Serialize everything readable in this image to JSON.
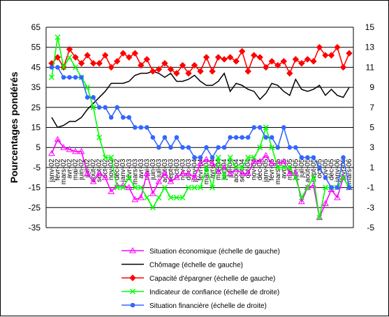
{
  "chart_data": {
    "type": "line",
    "ylabel": "Pourcentages pondérés",
    "y_left": {
      "min": -35,
      "max": 65,
      "ticks": [
        -35,
        -25,
        -15,
        -5,
        5,
        15,
        25,
        35,
        45,
        55,
        65
      ]
    },
    "y_right": {
      "min": -5,
      "max": 15,
      "ticks": [
        -5,
        -3,
        -1,
        1,
        3,
        5,
        7,
        9,
        11,
        13,
        15
      ]
    },
    "categories": [
      "janv-02",
      "févr-02",
      "mars-02",
      "avr-02",
      "mai-02",
      "juin-02",
      "juil-02",
      "août-02",
      "sept-02",
      "oct-02",
      "nov-02",
      "déc-02",
      "janv-03",
      "févr-03",
      "mars-03",
      "avr-03",
      "mai-03",
      "juin-03",
      "juil-03",
      "août-03",
      "sept-03",
      "oct-03",
      "nov-03",
      "déc-03",
      "janv-04",
      "févr-04",
      "mars-04",
      "avr-04",
      "mai-04",
      "juin-04",
      "juil-04",
      "août-04",
      "sept-04",
      "oct-04",
      "nov-04",
      "déc-04",
      "janv-05",
      "févr-05",
      "mars-05",
      "avr-05",
      "mai-05",
      "juin-05",
      "juil-05",
      "août-05",
      "sept-05",
      "oct-05",
      "nov-05",
      "déc-05",
      "janv-06",
      "févr-06",
      "mars-06"
    ],
    "x_labels": [
      "janv-02",
      "févr-02",
      "mars-02",
      "avr-02",
      "mai-02",
      "juin-02",
      "juil-02",
      "août-02",
      "sept-02",
      "oct-02",
      "nov-02",
      "déc-02",
      "janv-03",
      "févr-03",
      "mars-03",
      "avr-03",
      "mai-03",
      "juin-03",
      "juil-03",
      "août-03",
      "sept-03",
      "oct-03",
      "nov-03",
      "déc-03",
      "janv-04",
      "févr-04",
      "mars-04",
      "avr-04",
      "mai-04",
      "juin-04",
      "juil-04",
      "août-04",
      "sept-04",
      "oct-04",
      "nov-04",
      "déc-04",
      "janv-05",
      "févr-05",
      "mars-05",
      "avr-05",
      "mai-05",
      "juin-05",
      "juil-05",
      "août-05",
      "sept-05",
      "oct-05",
      "nov-05",
      "déc-05",
      "janv-06",
      "févr-06",
      "mars-06"
    ],
    "series": [
      {
        "name": "Situation économique (échelle de gauche)",
        "axis": "left",
        "color": "#ff00ff",
        "marker": "triangle",
        "values": [
          2,
          9,
          5,
          4,
          3,
          3,
          -8,
          -12,
          -8,
          -10,
          -17,
          -14,
          -14,
          -15,
          -21,
          -20,
          -8,
          -18,
          -12,
          -8,
          -12,
          -10,
          -8,
          -8,
          -10,
          -3,
          -1,
          -3,
          -7,
          -5,
          -8,
          -6,
          -8,
          -8,
          -2,
          -2,
          1,
          -3,
          -3,
          -2,
          -8,
          -8,
          -22,
          -15,
          -14,
          -30,
          -23,
          -16,
          -20,
          -10,
          -15
        ]
      },
      {
        "name": "Chômage (échelle de gauche)",
        "axis": "left",
        "color": "#000000",
        "marker": "none",
        "values": [
          20,
          15,
          16,
          18,
          18,
          20,
          24,
          27,
          30,
          33,
          37,
          37,
          37,
          38,
          41,
          42,
          42,
          43,
          42,
          40,
          42,
          38,
          38,
          39,
          41,
          38,
          36,
          36,
          38,
          42,
          33,
          37,
          36,
          34,
          33,
          29,
          32,
          37,
          36,
          33,
          31,
          39,
          34,
          33,
          34,
          36,
          31,
          34,
          31,
          30,
          35
        ]
      },
      {
        "name": "Capacité d'épargner (échelle de gauche)",
        "axis": "left",
        "color": "#ff0000",
        "marker": "diamond",
        "values": [
          47,
          50,
          45,
          54,
          50,
          47,
          51,
          47,
          47,
          51,
          45,
          48,
          52,
          50,
          52,
          46,
          49,
          43,
          44,
          47,
          44,
          42,
          46,
          42,
          46,
          43,
          50,
          43,
          50,
          49,
          50,
          48,
          53,
          43,
          51,
          50,
          45,
          48,
          46,
          48,
          42,
          49,
          47,
          49,
          48,
          55,
          51,
          51,
          55,
          45,
          52
        ]
      },
      {
        "name": "Indicateur de confiance (échelle de droite)",
        "axis": "right",
        "color": "#00ff00",
        "marker": "x",
        "values": [
          10,
          14,
          11,
          12,
          11,
          10,
          9,
          7,
          4,
          2,
          2,
          -1,
          -1,
          0,
          -1,
          -1,
          -2,
          -3,
          -2,
          -1,
          -2,
          -2,
          -2,
          -1,
          -1,
          -1,
          1,
          -1,
          2,
          0,
          2,
          1,
          1,
          2,
          2,
          3,
          5,
          3,
          1,
          1,
          1,
          0,
          -2,
          -1,
          0,
          -4,
          -1,
          -1,
          -1,
          0,
          -1
        ]
      },
      {
        "name": "Situation financière (échelle de droite)",
        "axis": "right",
        "color": "#3366ff",
        "marker": "circle",
        "values": [
          11,
          11,
          10,
          10,
          10,
          10,
          8,
          8,
          7,
          7,
          6,
          7,
          6,
          6,
          5,
          5,
          5,
          4,
          3,
          4,
          3,
          4,
          3,
          3,
          2,
          2,
          3,
          2,
          3,
          3,
          4,
          4,
          4,
          4,
          5,
          5,
          4,
          4,
          3,
          5,
          3,
          3,
          2,
          2,
          2,
          1,
          0,
          -1,
          -1,
          2,
          -1
        ]
      }
    ],
    "legend_position": "bottom",
    "grid": "horizontal"
  }
}
